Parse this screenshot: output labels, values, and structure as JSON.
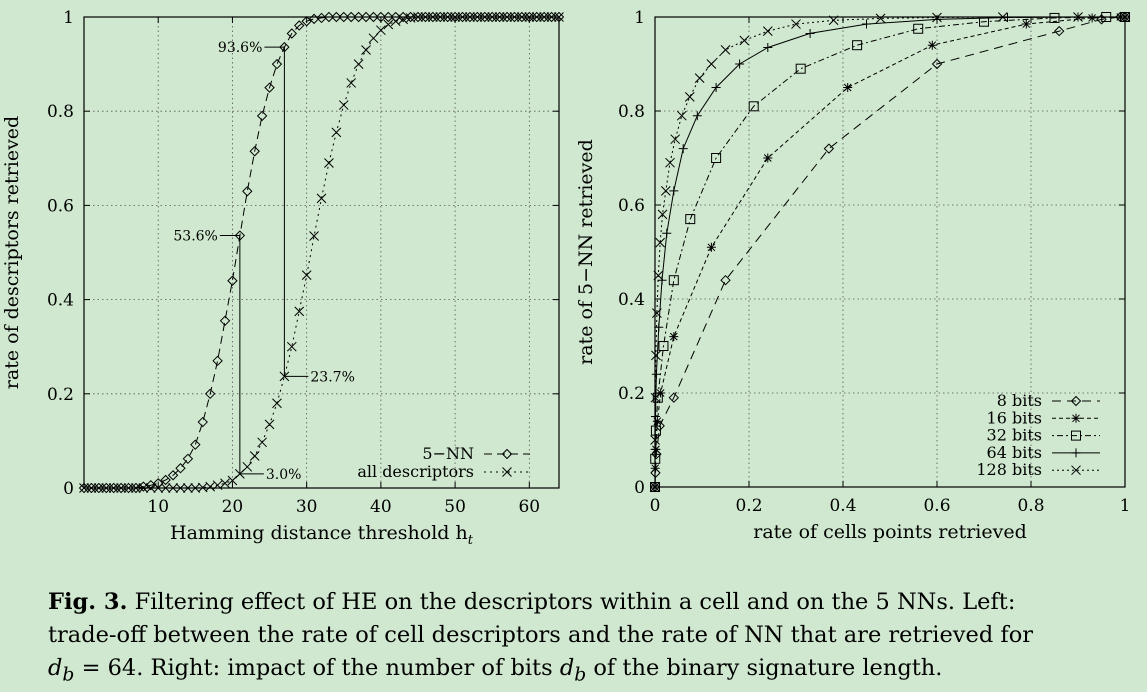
{
  "chart_data": [
    {
      "type": "line",
      "xlabel": "Hamming distance threshold h",
      "xlabel_sub": "t",
      "ylabel": "rate of descriptors retrieved",
      "xlim": [
        0,
        64
      ],
      "ylim": [
        0,
        1
      ],
      "xticks": [
        10,
        20,
        30,
        40,
        50,
        60
      ],
      "yticks": [
        0,
        0.2,
        0.4,
        0.6,
        0.8,
        1
      ],
      "ytick_labels": [
        "0",
        "0.2",
        "0.4",
        "0.6",
        "0.8",
        "1"
      ],
      "grid": true,
      "legend_position": "bottom-right",
      "series": [
        {
          "name": "5−NN",
          "marker": "diamond",
          "dash": "8,5",
          "x": [
            0,
            1,
            2,
            3,
            4,
            5,
            6,
            7,
            8,
            9,
            10,
            11,
            12,
            13,
            14,
            15,
            16,
            17,
            18,
            19,
            20,
            21,
            22,
            23,
            24,
            25,
            26,
            27,
            28,
            29,
            30,
            31,
            32,
            33,
            34,
            35,
            36,
            37,
            38,
            39,
            40,
            41,
            42,
            43,
            44,
            45,
            46,
            47,
            48,
            49,
            50,
            51,
            52,
            53,
            54,
            55,
            56,
            57,
            58,
            59,
            60,
            61,
            62,
            63,
            64
          ],
          "y": [
            0,
            0,
            0,
            0,
            0,
            0,
            0,
            0,
            0.003,
            0.006,
            0.01,
            0.017,
            0.027,
            0.042,
            0.062,
            0.092,
            0.14,
            0.2,
            0.27,
            0.355,
            0.44,
            0.536,
            0.63,
            0.715,
            0.79,
            0.85,
            0.9,
            0.936,
            0.965,
            0.982,
            0.991,
            0.996,
            0.998,
            1,
            1,
            1,
            1,
            1,
            1,
            1,
            1,
            1,
            1,
            1,
            1,
            1,
            1,
            1,
            1,
            1,
            1,
            1,
            1,
            1,
            1,
            1,
            1,
            1,
            1,
            1,
            1,
            1,
            1,
            1,
            1
          ]
        },
        {
          "name": "all descriptors",
          "marker": "cross",
          "dash": "2,4",
          "x": [
            0,
            1,
            2,
            3,
            4,
            5,
            6,
            7,
            8,
            9,
            10,
            11,
            12,
            13,
            14,
            15,
            16,
            17,
            18,
            19,
            20,
            21,
            22,
            23,
            24,
            25,
            26,
            27,
            28,
            29,
            30,
            31,
            32,
            33,
            34,
            35,
            36,
            37,
            38,
            39,
            40,
            41,
            42,
            43,
            44,
            45,
            46,
            47,
            48,
            49,
            50,
            51,
            52,
            53,
            54,
            55,
            56,
            57,
            58,
            59,
            60,
            61,
            62,
            63,
            64
          ],
          "y": [
            0,
            0,
            0,
            0,
            0,
            0,
            0,
            0,
            0,
            0,
            0,
            0,
            0,
            0,
            0,
            0,
            0.001,
            0.003,
            0.006,
            0.01,
            0.016,
            0.03,
            0.045,
            0.068,
            0.097,
            0.135,
            0.18,
            0.237,
            0.3,
            0.375,
            0.452,
            0.535,
            0.615,
            0.69,
            0.755,
            0.813,
            0.86,
            0.9,
            0.93,
            0.955,
            0.972,
            0.984,
            0.991,
            0.995,
            0.998,
            1,
            1,
            1,
            1,
            1,
            1,
            1,
            1,
            1,
            1,
            1,
            1,
            1,
            1,
            1,
            1,
            1,
            1,
            1,
            1
          ]
        }
      ],
      "annotations": [
        {
          "text": "93.6%",
          "x": 27,
          "y": 0.936,
          "side": "left"
        },
        {
          "text": "53.6%",
          "x": 21,
          "y": 0.536,
          "side": "left"
        },
        {
          "text": "23.7%",
          "x": 27,
          "y": 0.237,
          "side": "right"
        },
        {
          "text": "3.0%",
          "x": 21,
          "y": 0.03,
          "side": "right"
        }
      ]
    },
    {
      "type": "line",
      "xlabel": "rate of cells points retrieved",
      "ylabel": "rate of 5−NN retrieved",
      "xlim": [
        0,
        1
      ],
      "ylim": [
        0,
        1
      ],
      "xticks": [
        0,
        0.2,
        0.4,
        0.6,
        0.8,
        1
      ],
      "xtick_labels": [
        "0",
        "0.2",
        "0.4",
        "0.6",
        "0.8",
        "1"
      ],
      "yticks": [
        0,
        0.2,
        0.4,
        0.6,
        0.8,
        1
      ],
      "ytick_labels": [
        "0",
        "0.2",
        "0.4",
        "0.6",
        "0.8",
        "1"
      ],
      "grid": true,
      "legend_position": "bottom-right",
      "series": [
        {
          "name": "8 bits",
          "marker": "diamond",
          "dash": "9,6",
          "x": [
            0,
            0.001,
            0.003,
            0.01,
            0.04,
            0.15,
            0.37,
            0.6,
            0.86,
            0.95,
            0.99,
            1
          ],
          "y": [
            0,
            0.03,
            0.07,
            0.13,
            0.19,
            0.44,
            0.72,
            0.9,
            0.97,
            0.995,
            1,
            1
          ]
        },
        {
          "name": "16 bits",
          "marker": "star",
          "dash": "4,3",
          "x": [
            0,
            0.0005,
            0.002,
            0.005,
            0.012,
            0.04,
            0.12,
            0.24,
            0.41,
            0.59,
            0.79,
            0.93,
            0.99,
            1
          ],
          "y": [
            0,
            0.04,
            0.08,
            0.14,
            0.2,
            0.32,
            0.51,
            0.7,
            0.85,
            0.94,
            0.985,
            0.998,
            1,
            1
          ]
        },
        {
          "name": "32 bits",
          "marker": "square",
          "dash": "2,3,6,3",
          "x": [
            0,
            0.0005,
            0.002,
            0.006,
            0.018,
            0.04,
            0.075,
            0.13,
            0.21,
            0.31,
            0.43,
            0.56,
            0.7,
            0.85,
            0.96,
            1
          ],
          "y": [
            0,
            0.06,
            0.12,
            0.19,
            0.3,
            0.44,
            0.57,
            0.7,
            0.81,
            0.89,
            0.94,
            0.975,
            0.99,
            0.998,
            1,
            1
          ]
        },
        {
          "name": "64 bits",
          "marker": "plus",
          "dash": "none",
          "x": [
            0,
            0.0003,
            0.001,
            0.003,
            0.008,
            0.015,
            0.025,
            0.04,
            0.06,
            0.09,
            0.13,
            0.18,
            0.24,
            0.33,
            0.45,
            0.6,
            0.75,
            0.9,
            1
          ],
          "y": [
            0,
            0.08,
            0.15,
            0.24,
            0.34,
            0.44,
            0.54,
            0.63,
            0.72,
            0.79,
            0.85,
            0.9,
            0.935,
            0.965,
            0.985,
            0.995,
            0.999,
            1,
            1
          ]
        },
        {
          "name": "128 bits",
          "marker": "cross",
          "dash": "2,3",
          "x": [
            0,
            0.0002,
            0.0008,
            0.002,
            0.004,
            0.007,
            0.011,
            0.016,
            0.023,
            0.032,
            0.043,
            0.057,
            0.074,
            0.095,
            0.12,
            0.15,
            0.19,
            0.24,
            0.3,
            0.38,
            0.48,
            0.6,
            0.74,
            0.9,
            1
          ],
          "y": [
            0,
            0.1,
            0.19,
            0.28,
            0.37,
            0.45,
            0.52,
            0.58,
            0.63,
            0.69,
            0.74,
            0.79,
            0.83,
            0.87,
            0.9,
            0.93,
            0.95,
            0.97,
            0.985,
            0.993,
            0.997,
            0.999,
            1,
            1,
            1
          ]
        }
      ]
    }
  ],
  "caption": {
    "figlabel": "Fig. 3.",
    "line1": "Filtering effect of HE on the descriptors within a cell and on the 5 NNs. Left:",
    "line2": "trade-off between the rate of cell descriptors and the rate of NN that are retrieved for",
    "line3_var": "d",
    "line3_sub": "b",
    "line3_a": " = 64. Right: impact of the number of bits ",
    "line3_b": " of the binary signature length."
  }
}
